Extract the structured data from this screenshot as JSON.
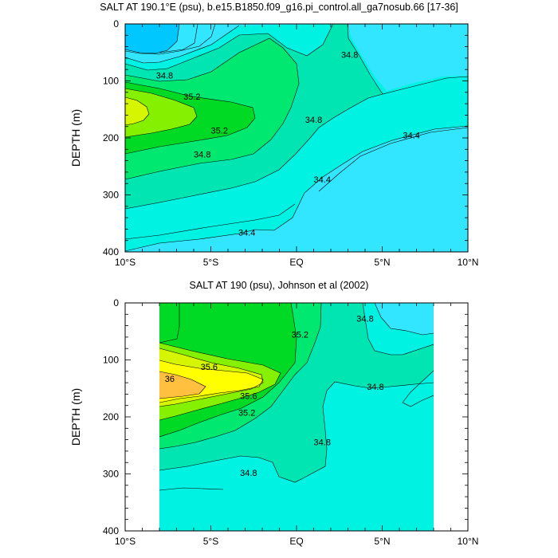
{
  "chart_data": [
    {
      "type": "contour",
      "title": "SALT AT 190.1°E (psu), b.e15.B1850.f09_g16.pi_control.all_ga7nosub.66 [17-36]",
      "ylabel": "DEPTH (m)",
      "xlabel": "",
      "x_range": [
        -10,
        10
      ],
      "y_range": [
        0,
        400
      ],
      "y_reversed": true,
      "x_tick_values": [
        -10,
        -5,
        0,
        5,
        10
      ],
      "x_tick_labels": [
        "10°S",
        "5°S",
        "EQ",
        "5°N",
        "10°N"
      ],
      "y_tick_values": [
        0,
        100,
        200,
        300,
        400
      ],
      "y_tick_labels": [
        "0",
        "100",
        "200",
        "300",
        "400"
      ],
      "contour_interval": 0.2,
      "contour_labels": [
        {
          "text": "34.8",
          "x": -7.7,
          "y": 90
        },
        {
          "text": "35.2",
          "x": -6.1,
          "y": 127
        },
        {
          "text": "35.2",
          "x": -4.5,
          "y": 187
        },
        {
          "text": "34.8",
          "x": -5.5,
          "y": 229
        },
        {
          "text": "34.8",
          "x": 3.1,
          "y": 54
        },
        {
          "text": "34.8",
          "x": 1.0,
          "y": 168
        },
        {
          "text": "34.4",
          "x": 6.7,
          "y": 195
        },
        {
          "text": "34.4",
          "x": 1.5,
          "y": 273
        },
        {
          "text": "34.4",
          "x": -2.9,
          "y": 366
        }
      ]
    },
    {
      "type": "contour",
      "title": "SALT AT 190 (psu), Johnson et al (2002)",
      "ylabel": "DEPTH (m)",
      "xlabel": "",
      "x_range": [
        -10,
        10
      ],
      "y_range": [
        0,
        400
      ],
      "y_reversed": true,
      "data_x_extent": [
        -8,
        8
      ],
      "x_tick_values": [
        -10,
        -5,
        0,
        5,
        10
      ],
      "x_tick_labels": [
        "10°S",
        "5°S",
        "EQ",
        "5°N",
        "10°N"
      ],
      "y_tick_values": [
        0,
        100,
        200,
        300,
        400
      ],
      "y_tick_labels": [
        "0",
        "100",
        "200",
        "300",
        "400"
      ],
      "contour_interval": 0.2,
      "contour_labels": [
        {
          "text": "35.6",
          "x": -5.1,
          "y": 112
        },
        {
          "text": "36",
          "x": -7.4,
          "y": 133
        },
        {
          "text": "35.6",
          "x": -2.8,
          "y": 163
        },
        {
          "text": "35.2",
          "x": -2.9,
          "y": 192
        },
        {
          "text": "35.2",
          "x": 0.2,
          "y": 55
        },
        {
          "text": "34.8",
          "x": 4.0,
          "y": 27
        },
        {
          "text": "34.8",
          "x": 4.6,
          "y": 147
        },
        {
          "text": "34.8",
          "x": 1.5,
          "y": 244
        },
        {
          "text": "34.8",
          "x": -2.8,
          "y": 298
        }
      ]
    }
  ],
  "colors": {
    "s34_2": "#00c8ff",
    "s34_4": "#33e6ff",
    "s34_6": "#00f2e2",
    "s34_8": "#00e5b2",
    "s35_0": "#00e870",
    "s35_2": "#00da25",
    "s35_4": "#85f000",
    "s35_6": "#d6f500",
    "s35_8": "#ffff00",
    "s36_0": "#ffc040"
  }
}
